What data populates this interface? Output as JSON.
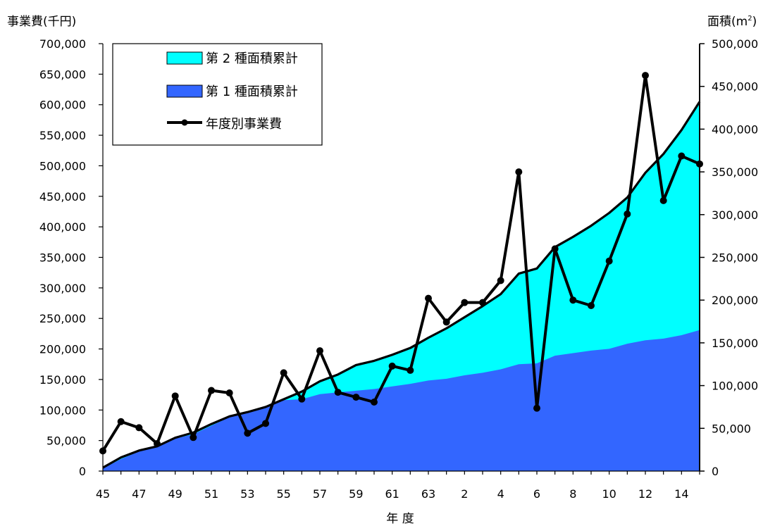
{
  "chart_data": {
    "type": "area",
    "y_left_label": "事業費(千円)",
    "y_right_label_prefix": "面積(m",
    "y_right_label_sup": "2",
    "y_right_label_suffix": ")",
    "xlabel": "年 度",
    "x_categories": [
      "45",
      "46",
      "47",
      "48",
      "49",
      "50",
      "51",
      "52",
      "53",
      "54",
      "55",
      "56",
      "57",
      "58",
      "59",
      "60",
      "61",
      "62",
      "63",
      "元",
      "2",
      "3",
      "4",
      "5",
      "6",
      "7",
      "8",
      "9",
      "10",
      "11",
      "12",
      "13",
      "14",
      "15"
    ],
    "x_tick_labels": [
      "45",
      "47",
      "49",
      "51",
      "53",
      "55",
      "57",
      "59",
      "61",
      "63",
      "2",
      "4",
      "6",
      "8",
      "10",
      "12",
      "14"
    ],
    "ylim_left": [
      0,
      700000
    ],
    "yticks_left": [
      "0",
      "50,000",
      "100,000",
      "150,000",
      "200,000",
      "250,000",
      "300,000",
      "350,000",
      "400,000",
      "450,000",
      "500,000",
      "550,000",
      "600,000",
      "650,000",
      "700,000"
    ],
    "ylim_right": [
      0,
      500000
    ],
    "yticks_right": [
      "0",
      "50,000",
      "100,000",
      "150,000",
      "200,000",
      "250,000",
      "300,000",
      "350,000",
      "400,000",
      "450,000",
      "500,000"
    ],
    "legend_position": "top-left",
    "series": [
      {
        "name": "第 2 種面積累計",
        "kind": "area",
        "axis": "right",
        "color": "#00FFFF",
        "values": [
          4000,
          16000,
          24000,
          29000,
          39000,
          45000,
          55000,
          64000,
          69000,
          75000,
          84000,
          93000,
          105000,
          113000,
          124000,
          129000,
          136000,
          144000,
          156000,
          167000,
          180000,
          193000,
          207000,
          231000,
          237000,
          262000,
          274000,
          287000,
          302000,
          320000,
          349000,
          371000,
          399000,
          432000
        ]
      },
      {
        "name": "第 1 種面積累計",
        "kind": "area",
        "axis": "right",
        "color": "#3366FF",
        "values": [
          3000,
          14000,
          23000,
          28000,
          38000,
          43000,
          53000,
          63000,
          69000,
          75000,
          83000,
          84000,
          90000,
          92000,
          94000,
          96000,
          99000,
          102000,
          106000,
          108000,
          112000,
          115000,
          119000,
          125000,
          126000,
          135000,
          138000,
          141000,
          143000,
          149000,
          153000,
          155000,
          159000,
          165000
        ]
      },
      {
        "name": "年度別事業費",
        "kind": "line",
        "axis": "left",
        "color": "#000000",
        "values": [
          33000,
          81000,
          71000,
          45000,
          123000,
          55000,
          132000,
          128000,
          62000,
          78000,
          161000,
          118000,
          197000,
          129000,
          121000,
          113000,
          172000,
          165000,
          283000,
          244000,
          276000,
          276000,
          312000,
          490000,
          103000,
          364000,
          280000,
          271000,
          344000,
          421000,
          648000,
          443000,
          516000,
          503000
        ]
      }
    ]
  }
}
